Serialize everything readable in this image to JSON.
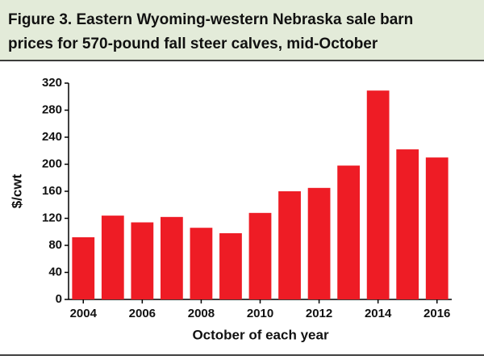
{
  "chart_data": {
    "type": "bar",
    "title": [
      "Figure 3. Eastern Wyoming-western Nebraska sale barn",
      "prices for 570-pound fall steer calves, mid-October"
    ],
    "x_label": "October of each year",
    "y_label": "$/cwt",
    "categories": [
      "2004",
      null,
      "2006",
      null,
      "2008",
      null,
      "2010",
      null,
      "2012",
      null,
      "2014",
      null,
      "2016"
    ],
    "values": [
      92,
      124,
      114,
      122,
      106,
      98,
      128,
      160,
      165,
      198,
      309,
      222,
      210
    ],
    "color": "#ee1c25",
    "ylim": [
      0,
      320
    ],
    "yticks": [
      0,
      40,
      80,
      120,
      160,
      200,
      240,
      280,
      320
    ],
    "grid": false
  }
}
